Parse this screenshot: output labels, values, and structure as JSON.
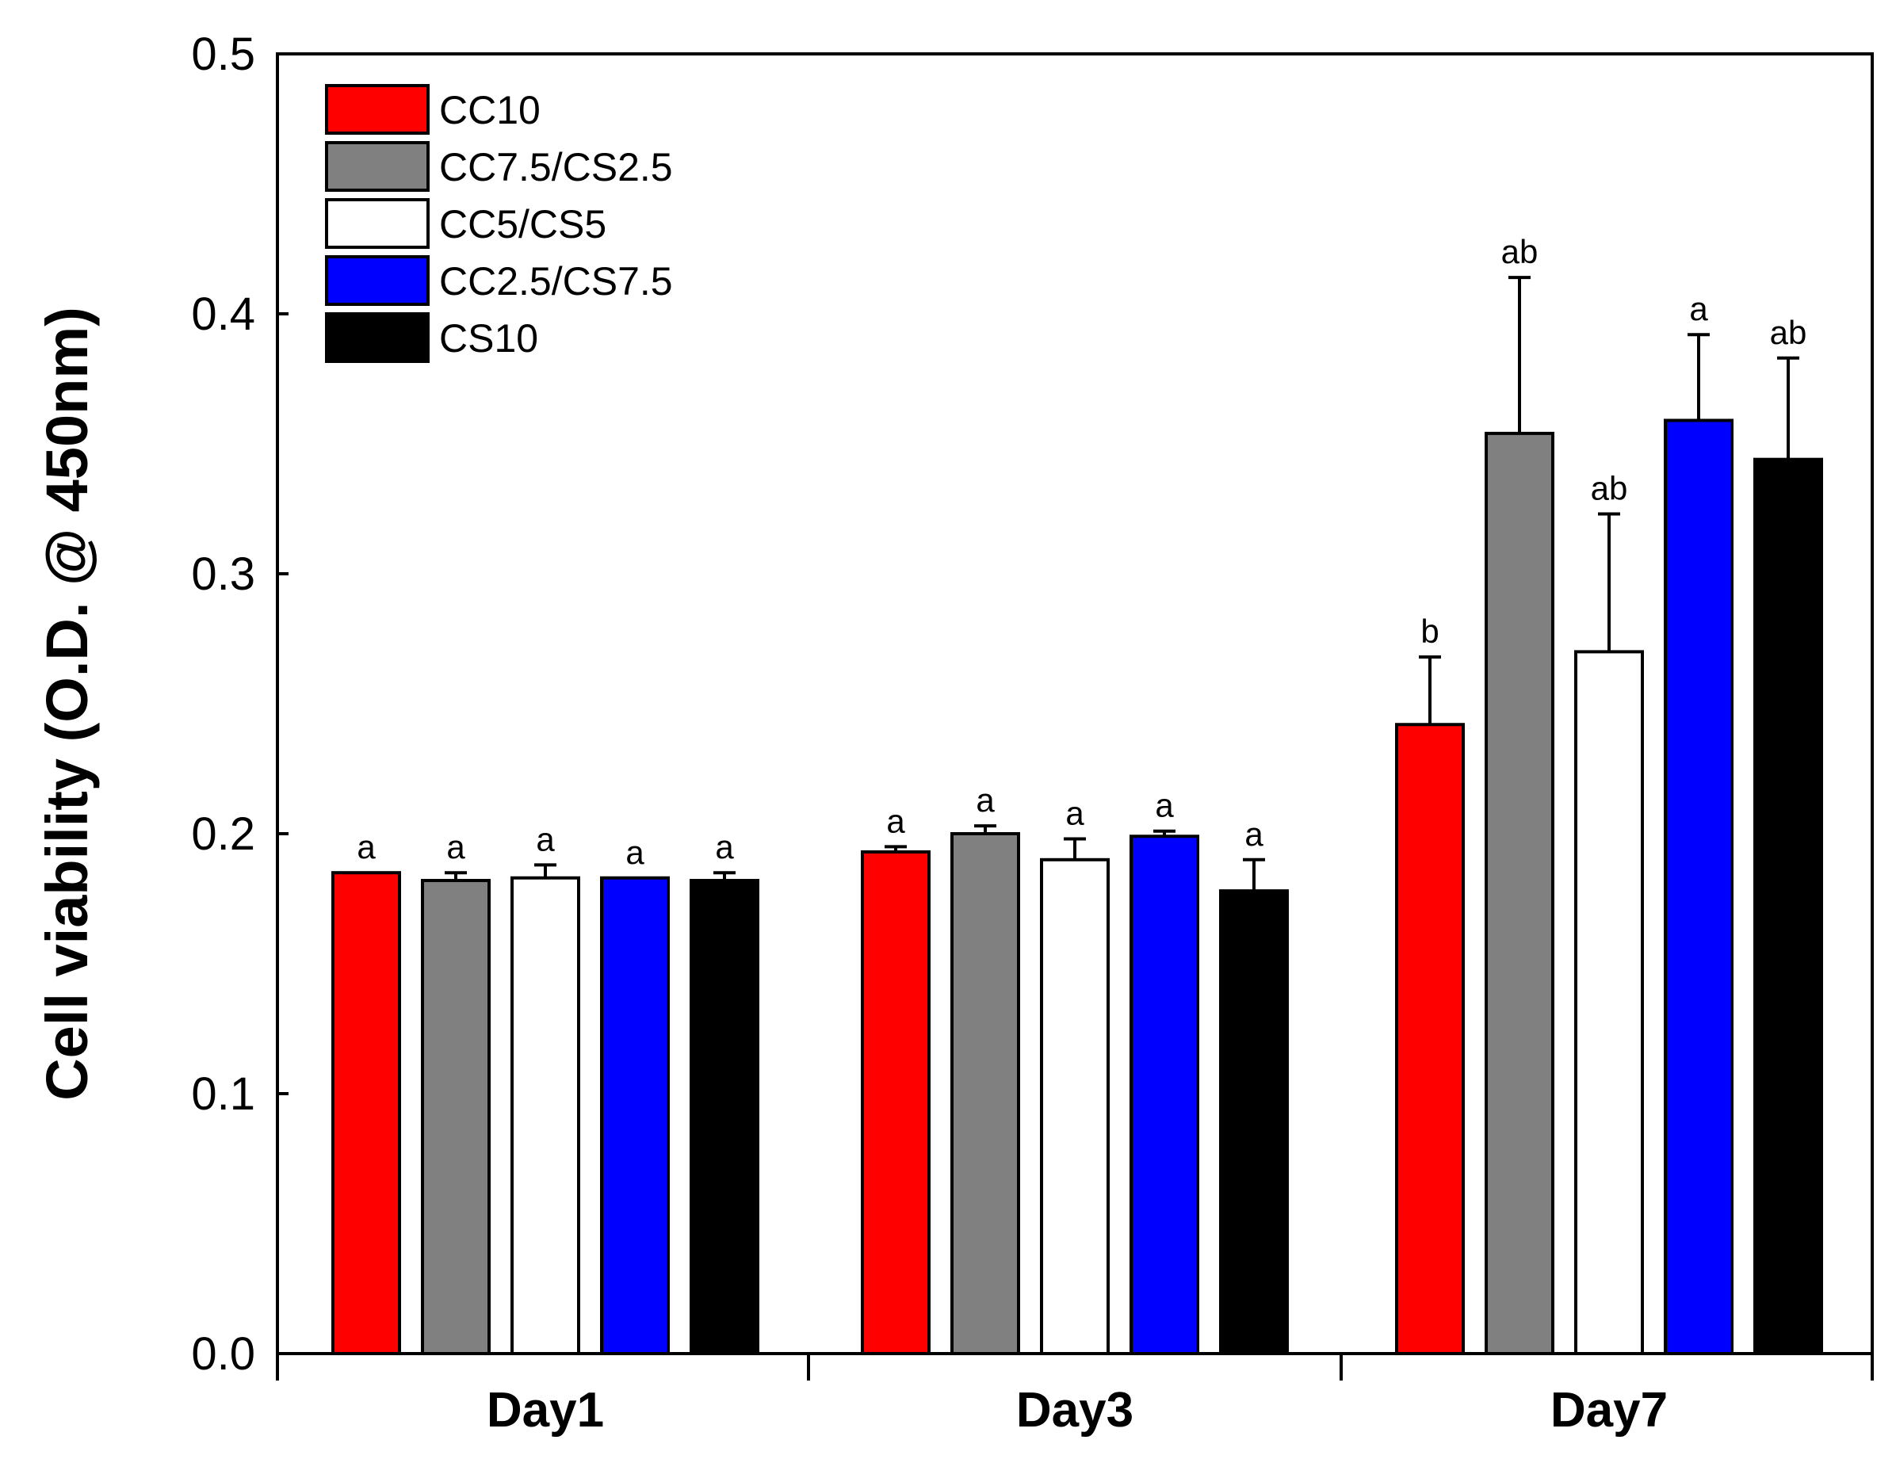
{
  "chart_data": {
    "type": "bar",
    "title": "",
    "xlabel": "",
    "ylabel": "Cell viability (O.D. @ 450nm)",
    "ylim": [
      0.0,
      0.5
    ],
    "yticks": [
      "0.0",
      "0.1",
      "0.2",
      "0.3",
      "0.4",
      "0.5"
    ],
    "categories": [
      "Day1",
      "Day3",
      "Day7"
    ],
    "legend_position": "top-left",
    "series": [
      {
        "name": "CC10",
        "color": "#ff0000",
        "values": [
          0.185,
          0.193,
          0.242
        ],
        "errors": [
          0.0,
          0.002,
          0.026
        ],
        "significance": [
          "a",
          "a",
          "b"
        ]
      },
      {
        "name": "CC7.5/CS2.5",
        "color": "#808080",
        "values": [
          0.182,
          0.2,
          0.354
        ],
        "errors": [
          0.003,
          0.003,
          0.06
        ],
        "significance": [
          "a",
          "a",
          "ab"
        ]
      },
      {
        "name": "CC5/CS5",
        "color": "#ffffff",
        "values": [
          0.183,
          0.19,
          0.27
        ],
        "errors": [
          0.005,
          0.008,
          0.053
        ],
        "significance": [
          "a",
          "a",
          "ab"
        ]
      },
      {
        "name": "CC2.5/CS7.5",
        "color": "#0000ff",
        "values": [
          0.183,
          0.199,
          0.359
        ],
        "errors": [
          0.0,
          0.002,
          0.033
        ],
        "significance": [
          "a",
          "a",
          "a"
        ]
      },
      {
        "name": "CS10",
        "color": "#000000",
        "values": [
          0.182,
          0.178,
          0.344
        ],
        "errors": [
          0.003,
          0.012,
          0.039
        ],
        "significance": [
          "a",
          "a",
          "ab"
        ]
      }
    ]
  }
}
